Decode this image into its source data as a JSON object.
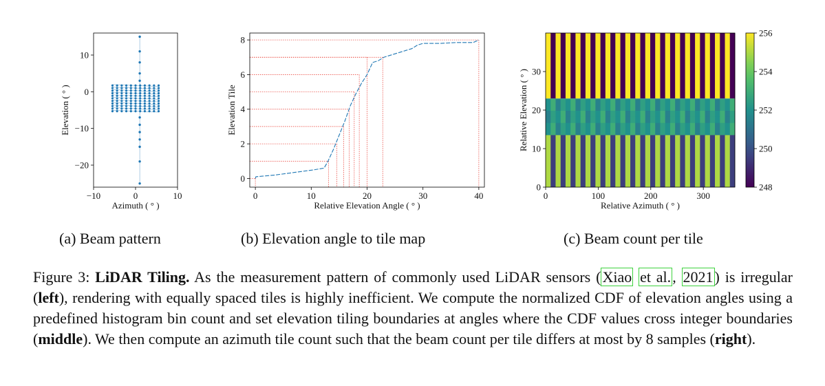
{
  "chart_data": [
    {
      "type": "scatter",
      "xlabel": "Azimuth ( ° )",
      "ylabel": "Elevation ( ° )",
      "xlim": [
        -10,
        10
      ],
      "ylim": [
        -26,
        16
      ],
      "xticks": [
        "−10",
        "0",
        "10"
      ],
      "yticks": [
        "−20",
        "−10",
        "0",
        "10"
      ],
      "marker_color": "#1f77b4",
      "vertical_beam": {
        "x": 1,
        "y": [
          15,
          11,
          8,
          5,
          3,
          -7,
          -9,
          -11,
          -13,
          -15,
          -19,
          -25
        ]
      },
      "dense_rows": {
        "x_min": -5.5,
        "x_max": 5.5,
        "x_step": 1.1,
        "y": [
          1.7,
          1.0,
          0.3,
          -0.4,
          -1.1,
          -1.8,
          -2.5,
          -3.2,
          -3.9,
          -4.6,
          -5.3
        ]
      }
    },
    {
      "type": "line",
      "xlabel": "Relative Elevation Angle ( ° )",
      "ylabel": "Elevation Tile",
      "xlim": [
        -1,
        41
      ],
      "ylim": [
        -0.5,
        8.4
      ],
      "xticks": [
        "0",
        "10",
        "20",
        "30",
        "40"
      ],
      "yticks": [
        "0",
        "2",
        "4",
        "6",
        "8"
      ],
      "cdf_color": "#1f77b4",
      "boundary_color": "#e8332a",
      "cdf": {
        "x": [
          0,
          0.1,
          3.5,
          7.0,
          10.5,
          12.3,
          13.0,
          14.0,
          15.0,
          16.0,
          17.0,
          18.0,
          19.0,
          20.0,
          21.0,
          22.0,
          23.0,
          24.0,
          25.0,
          26.0,
          27.0,
          28.0,
          29.0,
          30.0,
          33.0,
          36.0,
          39.0,
          40.0
        ],
        "y": [
          0,
          0.1,
          0.2,
          0.35,
          0.5,
          0.6,
          1.0,
          1.7,
          2.5,
          3.3,
          4.2,
          4.9,
          5.5,
          6.0,
          6.7,
          6.8,
          7.0,
          7.1,
          7.2,
          7.3,
          7.4,
          7.5,
          7.7,
          7.8,
          7.8,
          7.85,
          7.85,
          8.0
        ]
      },
      "boundaries": [
        {
          "x": 0,
          "y": 0
        },
        {
          "x": 13.1,
          "y": 1
        },
        {
          "x": 14.6,
          "y": 2
        },
        {
          "x": 15.8,
          "y": 3
        },
        {
          "x": 16.8,
          "y": 4
        },
        {
          "x": 17.7,
          "y": 5
        },
        {
          "x": 18.6,
          "y": 6
        },
        {
          "x": 20.0,
          "y": 7
        },
        {
          "x": 22.8,
          "y": 7
        },
        {
          "x": 40.0,
          "y": 8
        }
      ]
    },
    {
      "type": "heatmap",
      "xlabel": "Relative Azimuth ( ° )",
      "ylabel": "Relative Elevation ( ° )",
      "xlim": [
        0,
        360
      ],
      "ylim": [
        0,
        40
      ],
      "xticks": [
        "0",
        "100",
        "200",
        "300"
      ],
      "yticks": [
        "0",
        "10",
        "20",
        "30"
      ],
      "colorbar": {
        "min": 248,
        "max": 256,
        "ticks": [
          "248",
          "250",
          "252",
          "254",
          "256"
        ]
      },
      "columns": 38,
      "bands": [
        {
          "y0": 23,
          "y1": 40,
          "pattern": [
            256,
            248
          ]
        },
        {
          "y0": 13.5,
          "y1": 23,
          "pattern": [
            252,
            253,
            251.5,
            252.5
          ]
        },
        {
          "y0": 0,
          "y1": 13.5,
          "pattern": [
            255,
            249.5
          ]
        }
      ]
    }
  ],
  "subcaptions": {
    "a": "(a) Beam pattern",
    "b": "(b) Elevation angle to tile map",
    "c": "(c) Beam count per tile"
  },
  "caption": {
    "fig_label": "Figure 3: ",
    "title": "LiDAR Tiling.",
    "text1": " As the measurement pattern of commonly used LiDAR sensors (",
    "ref_part1": "Xiao",
    "ref_part2": "et al.",
    "ref_sep": ", ",
    "ref_year": "2021",
    "text2": ") is irregular (",
    "bold_left": "left",
    "text3": "), rendering with equally spaced tiles is highly inefficient. We compute the normalized CDF of elevation angles using a predefined histogram bin count and set elevation tiling boundaries at angles where the CDF values cross integer boundaries (",
    "bold_middle": "middle",
    "text4": "). We then compute an azimuth tile count such that the beam count per tile differs at most by 8 samples (",
    "bold_right": "right",
    "text5": ")."
  }
}
